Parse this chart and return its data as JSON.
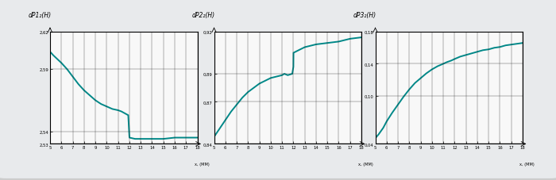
{
  "background_color": "#a8b4c4",
  "panel_facecolor": "#e8eaec",
  "plot_bg": "#f8f8f8",
  "line_color": "#008888",
  "line_width": 1.4,
  "x_ticks": [
    5,
    6,
    7,
    8,
    9,
    10,
    11,
    12,
    13,
    14,
    15,
    16,
    17,
    18
  ],
  "x_label": "x, (MM)",
  "plots": [
    {
      "ylabel": "dP1₂(H)",
      "ylim": [
        2.53,
        2.62
      ],
      "yticks": [
        2.53,
        2.54,
        2.59,
        2.62
      ],
      "ytick_labels": [
        "2,53",
        "2,54",
        "2,59",
        "2,62"
      ],
      "x": [
        5,
        5.3,
        6,
        6.5,
        7,
        7.5,
        8,
        8.5,
        9,
        9.5,
        10,
        10.5,
        11,
        11.3,
        11.5,
        11.7,
        11.9,
        12.0,
        12.01,
        12.5,
        13,
        14,
        15,
        16,
        17,
        18
      ],
      "y": [
        2.604,
        2.601,
        2.595,
        2.59,
        2.584,
        2.578,
        2.573,
        2.569,
        2.565,
        2.562,
        2.56,
        2.558,
        2.557,
        2.556,
        2.555,
        2.554,
        2.553,
        2.536,
        2.535,
        2.534,
        2.534,
        2.534,
        2.534,
        2.535,
        2.535,
        2.535
      ]
    },
    {
      "ylabel": "dP2₂(H)",
      "ylim": [
        0.84,
        0.92
      ],
      "yticks": [
        0.84,
        0.87,
        0.89,
        0.92
      ],
      "ytick_labels": [
        "0,84",
        "0,87",
        "0,89",
        "0,92"
      ],
      "x": [
        5,
        5.5,
        6,
        6.5,
        7,
        7.5,
        8,
        8.5,
        9,
        9.5,
        10,
        10.5,
        11,
        11.2,
        11.5,
        11.9,
        12.0,
        12.01,
        12.5,
        13,
        14,
        15,
        16,
        17,
        18
      ],
      "y": [
        0.845,
        0.851,
        0.857,
        0.863,
        0.868,
        0.873,
        0.877,
        0.88,
        0.883,
        0.885,
        0.887,
        0.888,
        0.889,
        0.89,
        0.889,
        0.89,
        0.895,
        0.905,
        0.907,
        0.909,
        0.911,
        0.912,
        0.913,
        0.915,
        0.916
      ]
    },
    {
      "ylabel": "dP3₂(H)",
      "ylim": [
        0.04,
        0.18
      ],
      "yticks": [
        0.04,
        0.1,
        0.14,
        0.18
      ],
      "ytick_labels": [
        "0,04",
        "0,10",
        "0,14",
        "0,18"
      ],
      "x": [
        5,
        5.3,
        5.7,
        6,
        6.5,
        7,
        7.5,
        8,
        8.5,
        9,
        9.5,
        10,
        10.5,
        11,
        11.3,
        11.5,
        11.7,
        12,
        12.5,
        13,
        13.5,
        14,
        14.5,
        15,
        15.5,
        16,
        16.5,
        17,
        17.5,
        18
      ],
      "y": [
        0.047,
        0.052,
        0.06,
        0.068,
        0.079,
        0.089,
        0.099,
        0.108,
        0.116,
        0.122,
        0.128,
        0.133,
        0.137,
        0.14,
        0.142,
        0.143,
        0.144,
        0.146,
        0.149,
        0.151,
        0.153,
        0.155,
        0.157,
        0.158,
        0.16,
        0.161,
        0.163,
        0.164,
        0.165,
        0.166
      ]
    }
  ]
}
